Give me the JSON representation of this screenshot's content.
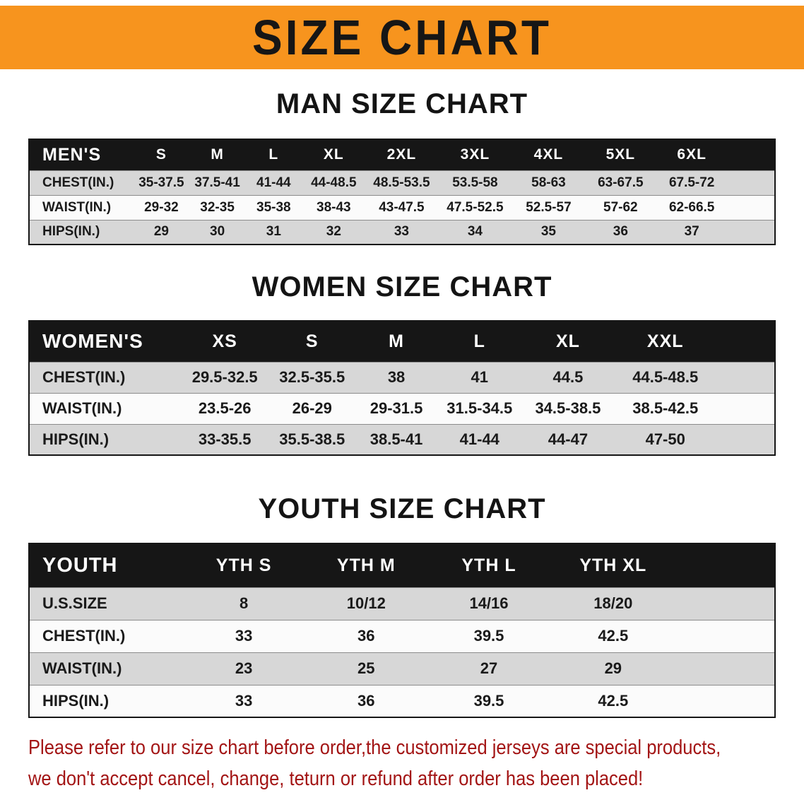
{
  "banner": {
    "title": "SIZE CHART"
  },
  "men": {
    "heading": "MAN SIZE CHART",
    "header": [
      "MEN'S",
      "S",
      "M",
      "L",
      "XL",
      "2XL",
      "3XL",
      "4XL",
      "5XL",
      "6XL"
    ],
    "chest": [
      "CHEST(IN.)",
      "35-37.5",
      "37.5-41",
      "41-44",
      "44-48.5",
      "48.5-53.5",
      "53.5-58",
      "58-63",
      "63-67.5",
      "67.5-72"
    ],
    "waist": [
      "WAIST(IN.)",
      "29-32",
      "32-35",
      "35-38",
      "38-43",
      "43-47.5",
      "47.5-52.5",
      "52.5-57",
      "57-62",
      "62-66.5"
    ],
    "hips": [
      "HIPS(IN.)",
      "29",
      "30",
      "31",
      "32",
      "33",
      "34",
      "35",
      "36",
      "37"
    ]
  },
  "women": {
    "heading": "WOMEN SIZE CHART",
    "header": [
      "WOMEN'S",
      "XS",
      "S",
      "M",
      "L",
      "XL",
      "XXL"
    ],
    "chest": [
      "CHEST(IN.)",
      "29.5-32.5",
      "32.5-35.5",
      "38",
      "41",
      "44.5",
      "44.5-48.5"
    ],
    "waist": [
      "WAIST(IN.)",
      "23.5-26",
      "26-29",
      "29-31.5",
      "31.5-34.5",
      "34.5-38.5",
      "38.5-42.5"
    ],
    "hips": [
      "HIPS(IN.)",
      "33-35.5",
      "35.5-38.5",
      "38.5-41",
      "41-44",
      "44-47",
      "47-50"
    ]
  },
  "youth": {
    "heading": "YOUTH SIZE CHART",
    "header": [
      "YOUTH",
      "YTH S",
      "YTH M",
      "YTH L",
      "YTH XL"
    ],
    "ussize": [
      "U.S.SIZE",
      "8",
      "10/12",
      "14/16",
      "18/20"
    ],
    "chest": [
      "CHEST(IN.)",
      "33",
      "36",
      "39.5",
      "42.5"
    ],
    "waist": [
      "WAIST(IN.)",
      "23",
      "25",
      "27",
      "29"
    ],
    "hips": [
      "HIPS(IN.)",
      "33",
      "36",
      "39.5",
      "42.5"
    ]
  },
  "footer": {
    "line1": "Please refer to our size chart before order,the customized jerseys are special products,",
    "line2": "we don't accept cancel, change, teturn or refund after order has been placed!"
  },
  "colors": {
    "banner_bg": "#F7941E",
    "header_bg": "#161616",
    "row_gray": "#d7d7d7",
    "row_white": "#fbfbfb",
    "note_red": "#A31515"
  }
}
